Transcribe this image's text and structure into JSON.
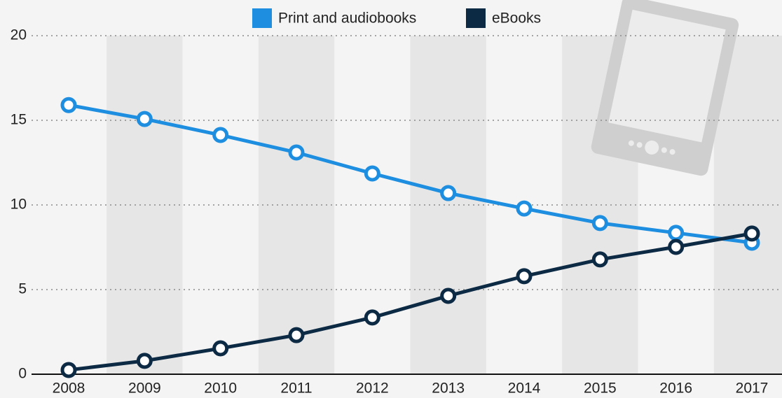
{
  "chart_data": {
    "type": "line",
    "categories": [
      "2008",
      "2009",
      "2010",
      "2011",
      "2012",
      "2013",
      "2014",
      "2015",
      "2016",
      "2017"
    ],
    "series": [
      {
        "name": "Print and audiobooks",
        "color": "#1d8ee0",
        "values": [
          15.9,
          15.08,
          14.13,
          13.1,
          11.86,
          10.7,
          9.79,
          8.93,
          8.35,
          7.77
        ]
      },
      {
        "name": "eBooks",
        "color": "#0d2a45",
        "values": [
          0.25,
          0.79,
          1.53,
          2.31,
          3.35,
          4.63,
          5.79,
          6.78,
          7.52,
          8.31
        ]
      }
    ],
    "ylim": [
      0,
      20
    ],
    "yticks": [
      0,
      5,
      10,
      15,
      20
    ],
    "grid": true
  }
}
